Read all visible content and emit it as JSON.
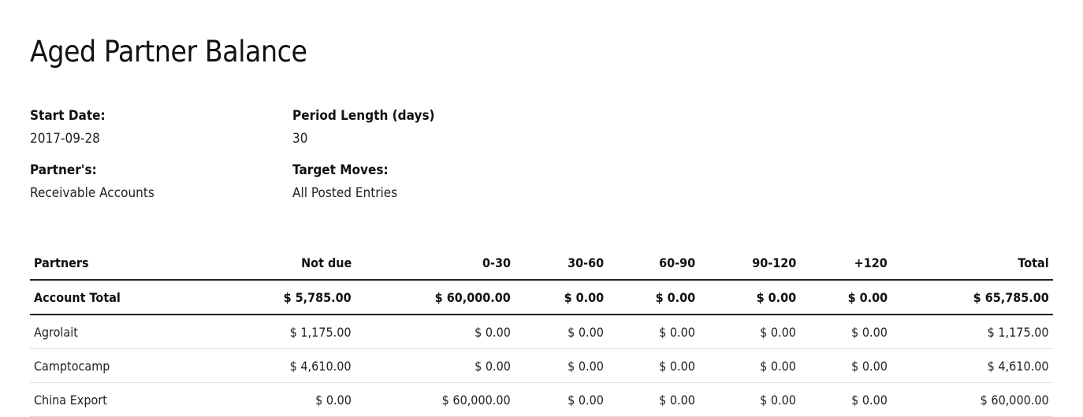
{
  "report": {
    "title": "Aged Partner Balance"
  },
  "filters": {
    "start_date_label": "Start Date:",
    "start_date_value": "2017-09-28",
    "period_length_label": "Period Length (days)",
    "period_length_value": "30",
    "partners_label": "Partner's:",
    "partners_value": "Receivable Accounts",
    "target_moves_label": "Target Moves:",
    "target_moves_value": "All Posted Entries"
  },
  "table": {
    "headers": [
      "Partners",
      "Not due",
      "0-30",
      "30-60",
      "60-90",
      "90-120",
      "+120",
      "Total"
    ],
    "total_row": [
      "Account Total",
      "$ 5,785.00",
      "$ 60,000.00",
      "$ 0.00",
      "$ 0.00",
      "$ 0.00",
      "$ 0.00",
      "$ 65,785.00"
    ],
    "rows": [
      [
        "Agrolait",
        "$ 1,175.00",
        "$ 0.00",
        "$ 0.00",
        "$ 0.00",
        "$ 0.00",
        "$ 0.00",
        "$ 1,175.00"
      ],
      [
        "Camptocamp",
        "$ 4,610.00",
        "$ 0.00",
        "$ 0.00",
        "$ 0.00",
        "$ 0.00",
        "$ 0.00",
        "$ 4,610.00"
      ],
      [
        "China Export",
        "$ 0.00",
        "$ 60,000.00",
        "$ 0.00",
        "$ 0.00",
        "$ 0.00",
        "$ 0.00",
        "$ 60,000.00"
      ]
    ]
  }
}
